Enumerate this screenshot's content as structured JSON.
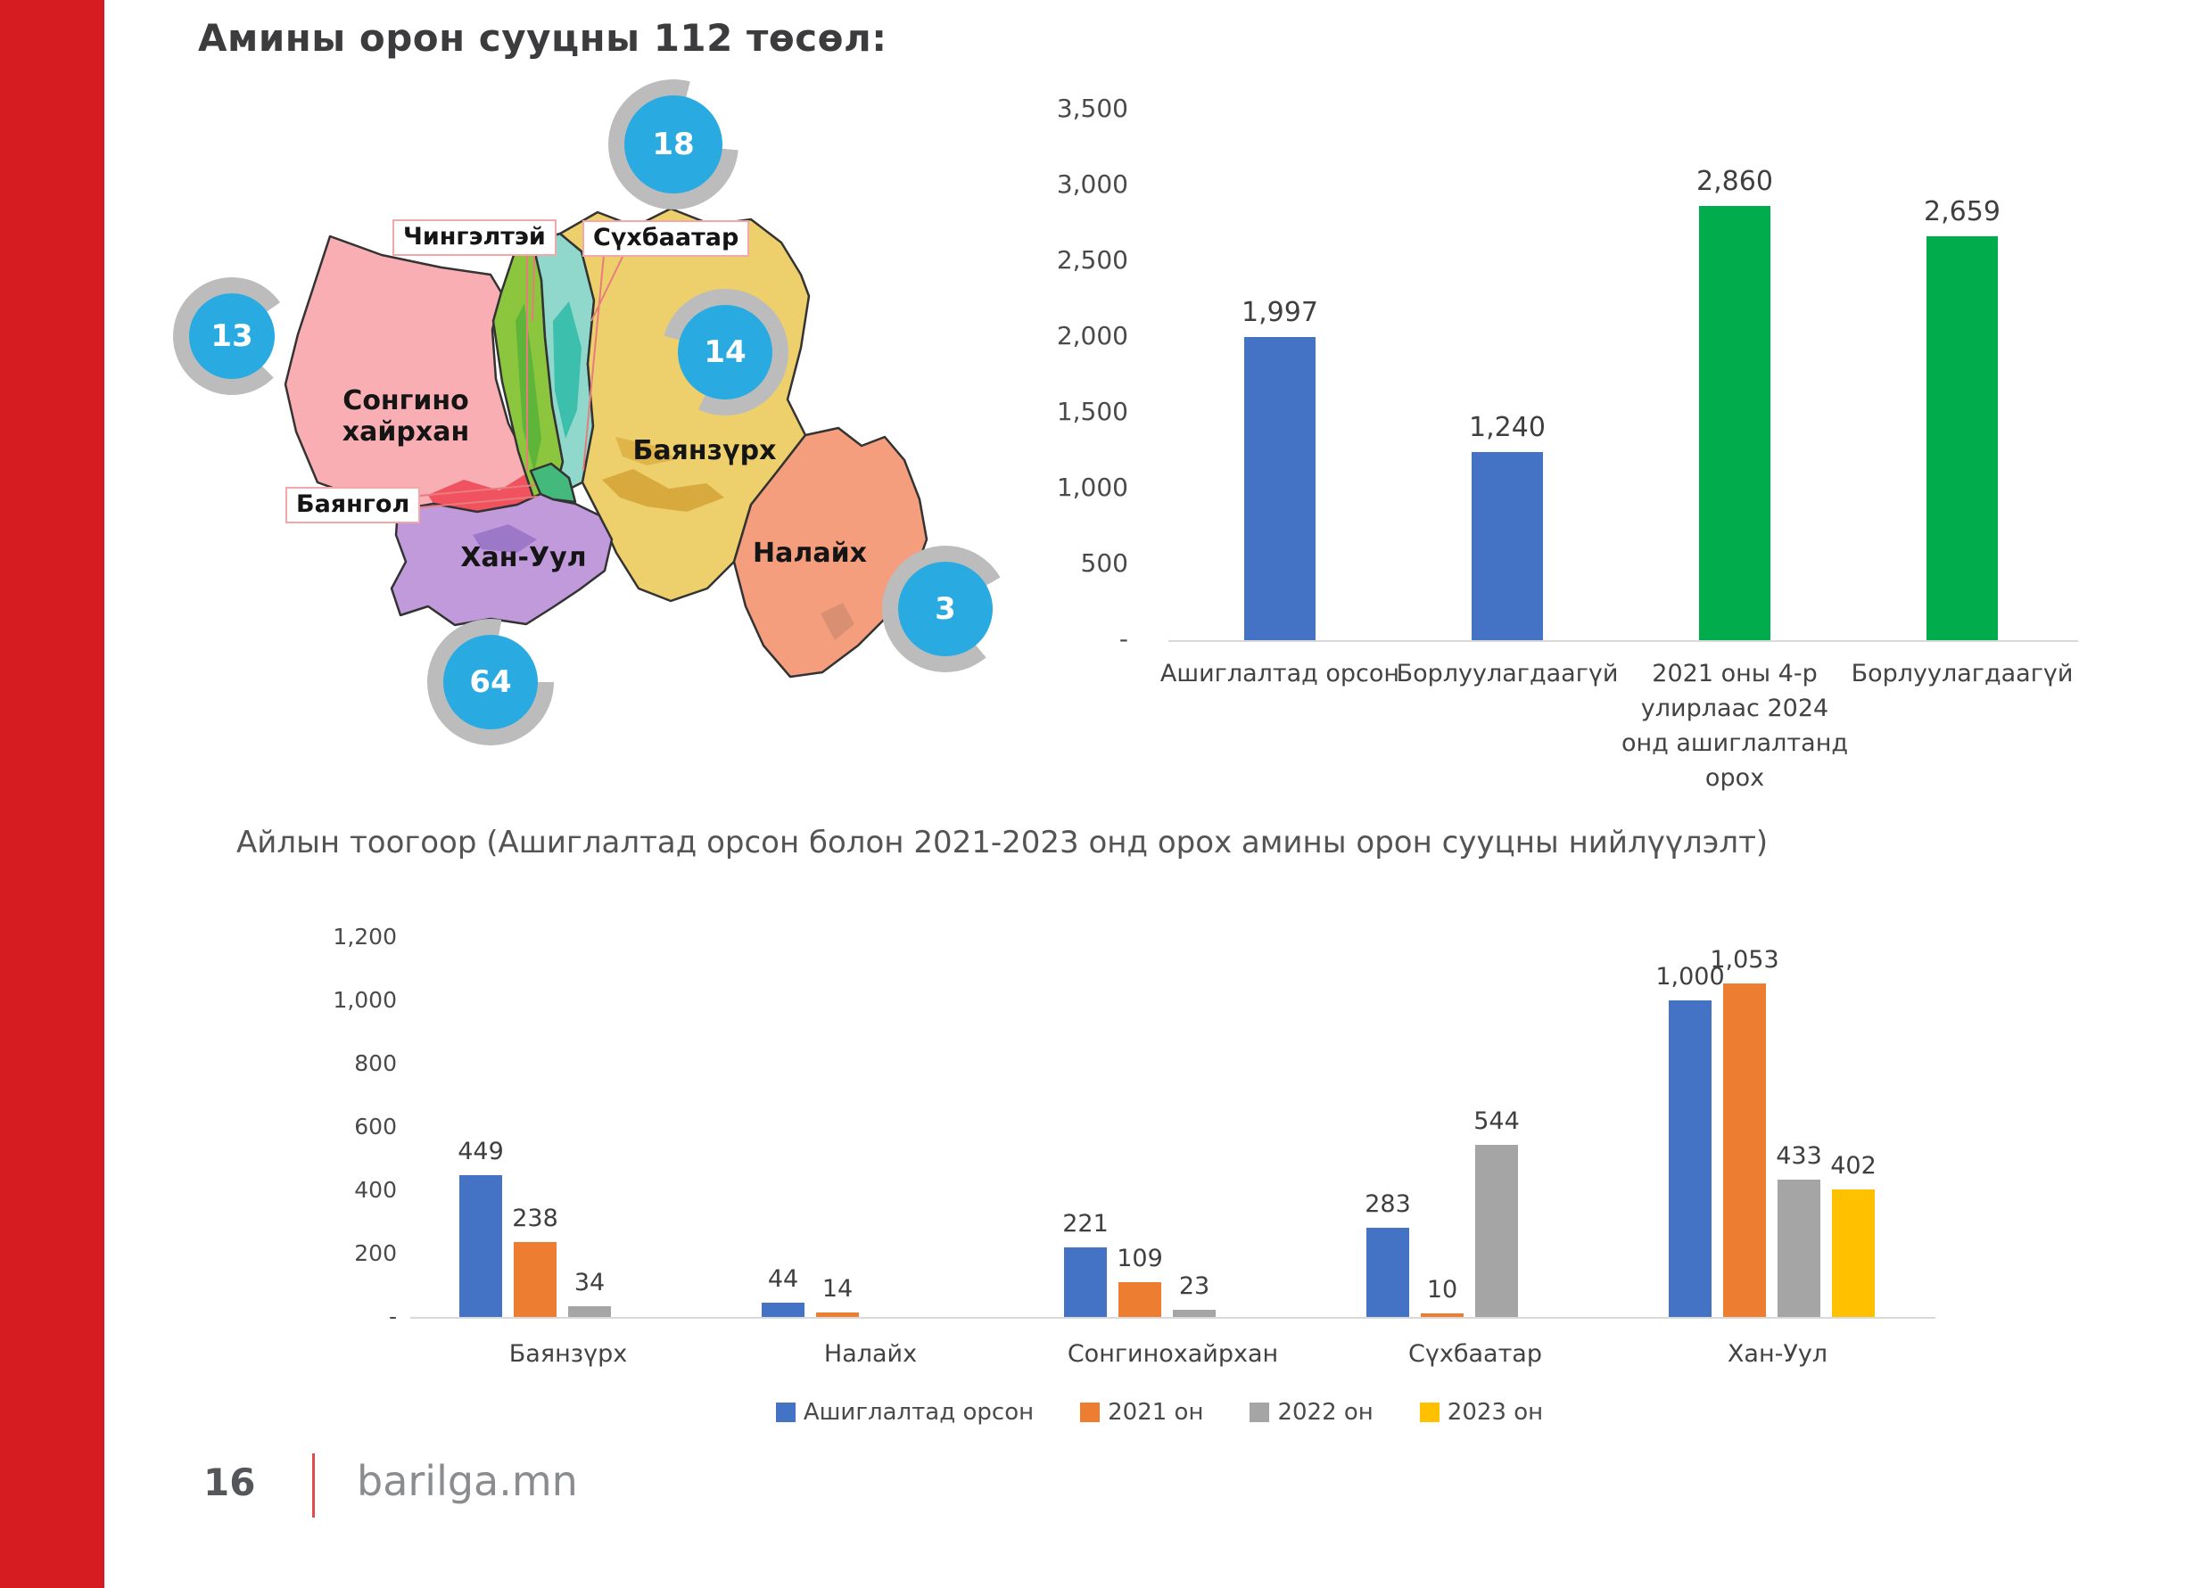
{
  "page": {
    "title": "Амины орон сууцны 112 төсөл:",
    "subtitle": "Айлын тоогоор (Ашиглалтад орсон болон 2021-2023 онд орох амины орон сууцны нийлүүлэлт)",
    "accent_red": "#d61b21",
    "footer": {
      "page_number": "16",
      "site": "barilga.mn",
      "divider_color": "#e04a4f"
    }
  },
  "map": {
    "district_labels": [
      "Сонгино хайрхан",
      "Баянзүрх",
      "Налайх",
      "Хан-Уул"
    ],
    "boxed_labels": [
      "Чингэлтэй",
      "Сүхбаатар",
      "Баянгол"
    ],
    "bubbles": [
      {
        "value": "18"
      },
      {
        "value": "13"
      },
      {
        "value": "14"
      },
      {
        "value": "3"
      },
      {
        "value": "64"
      }
    ],
    "colors": {
      "songino_khairkhan": "#f8aeb3",
      "chingeltei": "#8cc63f",
      "sukhbaatar": "#8fd8cb",
      "bayanzurkh": "#edd06b",
      "nalaikh": "#f49e7d",
      "khan_uul": "#c09adb",
      "bayangol": "#44b97c",
      "bubble_blue": "#29abe2",
      "bubble_arc_gray": "#bcbcbc"
    }
  },
  "chart_data": [
    {
      "type": "bar",
      "title": "",
      "categories": [
        "Ашиглалтад орсон",
        "Борлуулагдаагүй",
        "2021 оны 4-р улирлаас 2024 онд ашиглалтанд орох",
        "Борлуулагдаагүй"
      ],
      "values": [
        1997,
        1240,
        2860,
        2659
      ],
      "value_labels": [
        "1,997",
        "1,240",
        "2,860",
        "2,659"
      ],
      "bar_colors": [
        "#4472c4",
        "#4472c4",
        "#00ac4c",
        "#00ac4c"
      ],
      "ylim": [
        0,
        3500
      ],
      "yticks": [
        "3,500",
        "3,000",
        "2,500",
        "2,000",
        "1,500",
        "1,000",
        "500",
        "-"
      ],
      "grid": false,
      "legend": false
    },
    {
      "type": "bar",
      "title": "",
      "categories": [
        "Баянзүрх",
        "Налайх",
        "Сонгинохайрхан",
        "Сүхбаатар",
        "Хан-Уул"
      ],
      "series": [
        {
          "name": "Ашиглалтад орсон",
          "color": "#4472c4",
          "values": [
            449,
            44,
            221,
            283,
            1000
          ],
          "value_labels": [
            "449",
            "44",
            "221",
            "283",
            "1,000"
          ]
        },
        {
          "name": "2021 он",
          "color": "#ed7d31",
          "values": [
            238,
            14,
            109,
            10,
            1053
          ],
          "value_labels": [
            "238",
            "14",
            "109",
            "10",
            "1,053"
          ]
        },
        {
          "name": "2022 он",
          "color": "#a5a5a5",
          "values": [
            34,
            null,
            23,
            544,
            433
          ],
          "value_labels": [
            "34",
            null,
            "23",
            "544",
            "433"
          ]
        },
        {
          "name": "2023 он",
          "color": "#ffc000",
          "values": [
            null,
            null,
            null,
            null,
            402
          ],
          "value_labels": [
            null,
            null,
            null,
            null,
            "402"
          ]
        }
      ],
      "ylim": [
        0,
        1200
      ],
      "yticks": [
        "1,200",
        "1,000",
        "800",
        "600",
        "400",
        "200",
        "-"
      ],
      "grid": false,
      "legend_position": "bottom"
    }
  ]
}
